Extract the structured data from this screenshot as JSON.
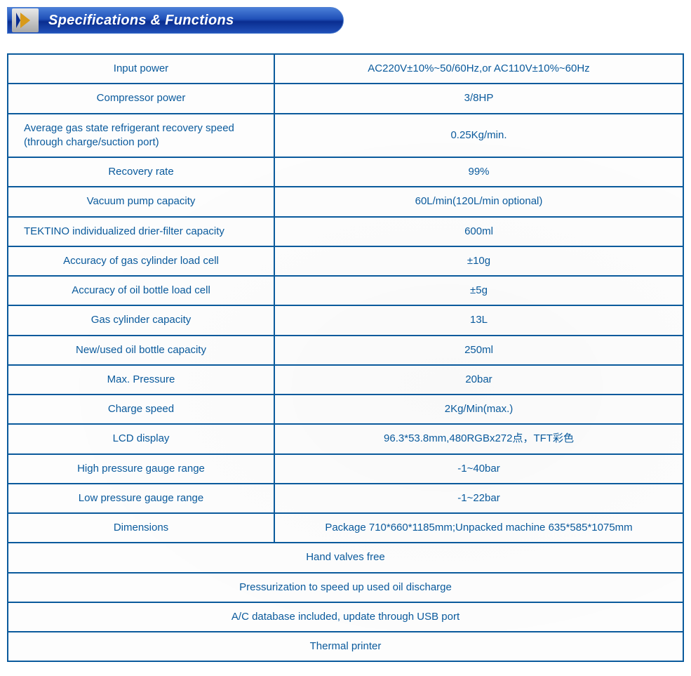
{
  "header": {
    "title": "Specifications & Functions"
  },
  "colors": {
    "border": "#0a5a9c",
    "text": "#0a5a9c",
    "header_grad_top": "#4a7fd8",
    "header_grad_bottom": "#0a2d90",
    "chevron": "#d89a1a"
  },
  "spec_rows": [
    {
      "label": "Input power",
      "value": "AC220V±10%~50/60Hz,or AC110V±10%~60Hz"
    },
    {
      "label": "Compressor power",
      "value": "3/8HP"
    },
    {
      "label": "Average gas state refrigerant recovery speed (through charge/suction port)",
      "value": "0.25Kg/min.",
      "left_multi": true
    },
    {
      "label": "Recovery rate",
      "value": "99%"
    },
    {
      "label": "Vacuum pump capacity",
      "value": "60L/min(120L/min optional)"
    },
    {
      "label": "TEKTINO individualized\ndrier-filter capacity",
      "value": "600ml",
      "left_multi": true
    },
    {
      "label": "Accuracy of gas cylinder load cell",
      "value": "±10g"
    },
    {
      "label": "Accuracy of oil bottle load cell",
      "value": "±5g"
    },
    {
      "label": "Gas cylinder capacity",
      "value": "13L"
    },
    {
      "label": "New/used oil bottle capacity",
      "value": "250ml"
    },
    {
      "label": "Max. Pressure",
      "value": "20bar"
    },
    {
      "label": "Charge speed",
      "value": "2Kg/Min(max.)"
    },
    {
      "label": "LCD display",
      "value": "96.3*53.8mm,480RGBx272点，TFT彩色"
    },
    {
      "label": "High pressure gauge range",
      "value": "-1~40bar"
    },
    {
      "label": "Low pressure gauge range",
      "value": "-1~22bar"
    },
    {
      "label": "Dimensions",
      "value": "Package 710*660*1185mm;Unpacked machine 635*585*1075mm"
    }
  ],
  "full_rows": [
    "Hand valves free",
    "Pressurization to speed up used oil discharge",
    "A/C database included, update through USB port",
    "Thermal printer"
  ]
}
